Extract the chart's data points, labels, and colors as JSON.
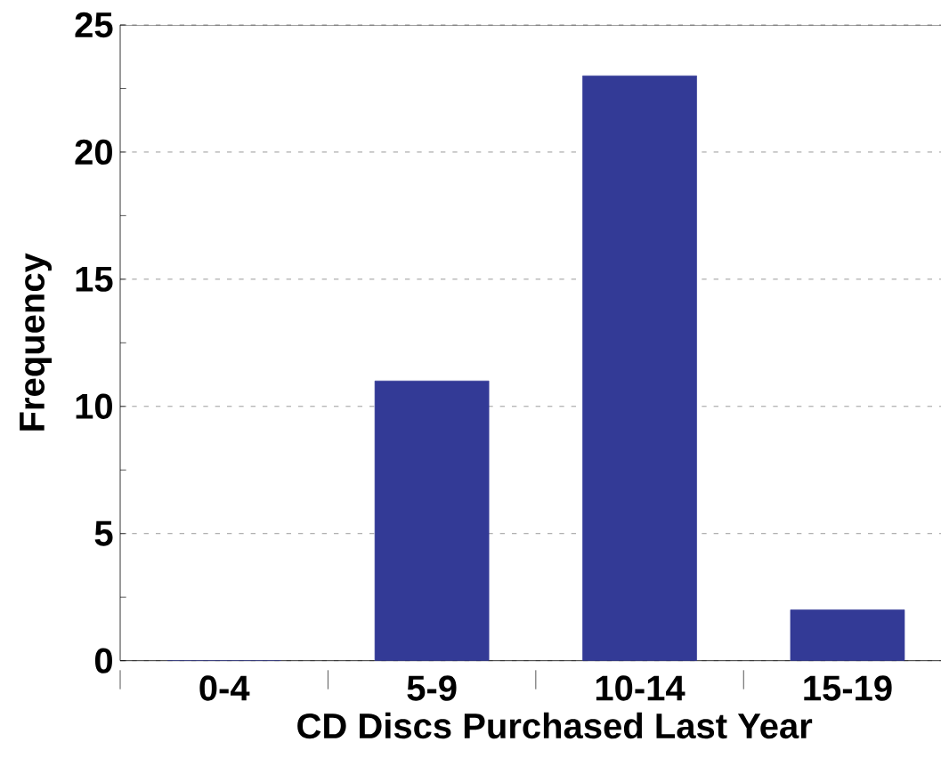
{
  "chart_data": {
    "type": "bar",
    "xlabel": "CD Discs Purchased Last Year",
    "ylabel": "Frequency",
    "categories": [
      "0-4",
      "5-9",
      "10-14",
      "15-19"
    ],
    "values": [
      0,
      11,
      23,
      2
    ],
    "color": "#333a96",
    "ylim": [
      0,
      25
    ],
    "yticks": [
      0,
      5,
      10,
      15,
      20,
      25
    ],
    "grid": "y"
  }
}
